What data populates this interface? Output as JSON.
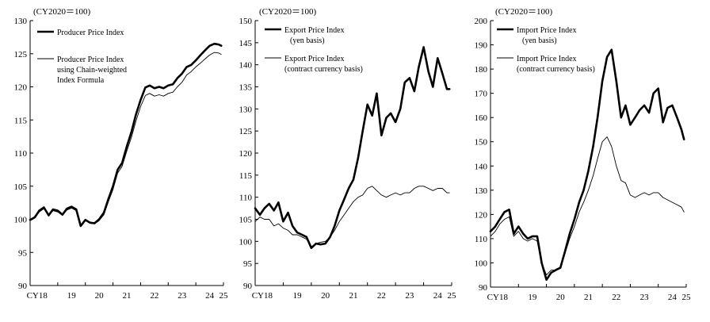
{
  "chart_data": [
    {
      "type": "line",
      "unit_label": "(CY2020＝100)",
      "ylim": [
        90,
        130
      ],
      "yticks": [
        90,
        95,
        100,
        105,
        110,
        115,
        120,
        125,
        130
      ],
      "xlim": [
        2018,
        2025
      ],
      "xtick_labels": [
        {
          "x": 2018.25,
          "label": "CY18"
        },
        {
          "x": 2019.5,
          "label": "19"
        },
        {
          "x": 2020.5,
          "label": "20"
        },
        {
          "x": 2021.5,
          "label": "21"
        },
        {
          "x": 2022.5,
          "label": "22"
        },
        {
          "x": 2023.5,
          "label": "23"
        },
        {
          "x": 2024.5,
          "label": "24"
        },
        {
          "x": 2025,
          "label": "25"
        }
      ],
      "grid": false,
      "legend_position": "top-left",
      "series": [
        {
          "name": "Producer Price Index",
          "legend_lines": [
            "Producer Price Index"
          ],
          "width": "thick",
          "x": [
            2018.0,
            2018.17,
            2018.33,
            2018.5,
            2018.67,
            2018.83,
            2019.0,
            2019.17,
            2019.33,
            2019.5,
            2019.67,
            2019.83,
            2020.0,
            2020.17,
            2020.33,
            2020.5,
            2020.67,
            2020.83,
            2021.0,
            2021.17,
            2021.33,
            2021.5,
            2021.67,
            2021.83,
            2022.0,
            2022.17,
            2022.33,
            2022.5,
            2022.67,
            2022.83,
            2023.0,
            2023.17,
            2023.33,
            2023.5,
            2023.67,
            2023.83,
            2024.0,
            2024.17,
            2024.33,
            2024.5,
            2024.67,
            2024.83,
            2024.92
          ],
          "values": [
            99.9,
            100.3,
            101.3,
            101.8,
            100.6,
            101.5,
            101.3,
            100.7,
            101.6,
            101.9,
            101.5,
            99.0,
            99.9,
            99.5,
            99.4,
            100.0,
            101.0,
            103.0,
            105.0,
            107.5,
            108.5,
            111.0,
            113.2,
            115.8,
            118.0,
            119.9,
            120.2,
            119.8,
            120.0,
            119.8,
            120.2,
            120.4,
            121.3,
            122.0,
            123.0,
            123.3,
            124.0,
            124.8,
            125.5,
            126.2,
            126.5,
            126.4,
            126.2
          ]
        },
        {
          "name": "Producer Price Index using Chain-weighted Index Formula",
          "legend_lines": [
            "Producer Price Index",
            "using Chain-weighted",
            "Index Formula"
          ],
          "width": "thin",
          "x": [
            2018.0,
            2018.17,
            2018.33,
            2018.5,
            2018.67,
            2018.83,
            2019.0,
            2019.17,
            2019.33,
            2019.5,
            2019.67,
            2019.83,
            2020.0,
            2020.17,
            2020.33,
            2020.5,
            2020.67,
            2020.83,
            2021.0,
            2021.17,
            2021.33,
            2021.5,
            2021.67,
            2021.83,
            2022.0,
            2022.17,
            2022.33,
            2022.5,
            2022.67,
            2022.83,
            2023.0,
            2023.17,
            2023.33,
            2023.5,
            2023.67,
            2023.83,
            2024.0,
            2024.17,
            2024.33,
            2024.5,
            2024.67,
            2024.83,
            2024.92
          ],
          "values": [
            99.8,
            100.2,
            101.1,
            101.6,
            100.5,
            101.3,
            101.1,
            100.6,
            101.4,
            101.7,
            101.3,
            98.9,
            99.8,
            99.4,
            99.3,
            99.8,
            100.7,
            102.6,
            104.5,
            107.0,
            108.0,
            110.3,
            112.4,
            114.8,
            117.0,
            118.7,
            119.0,
            118.6,
            118.8,
            118.6,
            119.0,
            119.2,
            120.0,
            120.7,
            121.8,
            122.3,
            123.0,
            123.6,
            124.2,
            124.8,
            125.2,
            125.1,
            124.9
          ]
        }
      ]
    },
    {
      "type": "line",
      "unit_label": "(CY2020＝100)",
      "ylim": [
        90,
        150
      ],
      "yticks": [
        90,
        95,
        100,
        105,
        110,
        115,
        120,
        125,
        130,
        135,
        140,
        145,
        150
      ],
      "xlim": [
        2018,
        2025
      ],
      "xtick_labels": [
        {
          "x": 2018.25,
          "label": "CY18"
        },
        {
          "x": 2019.5,
          "label": "19"
        },
        {
          "x": 2020.5,
          "label": "20"
        },
        {
          "x": 2021.5,
          "label": "21"
        },
        {
          "x": 2022.5,
          "label": "22"
        },
        {
          "x": 2023.5,
          "label": "23"
        },
        {
          "x": 2024.5,
          "label": "24"
        },
        {
          "x": 2025,
          "label": "25"
        }
      ],
      "grid": false,
      "legend_position": "top-left",
      "series": [
        {
          "name": "Export Price Index (yen basis)",
          "legend_lines": [
            "Export Price Index",
            "(yen basis)"
          ],
          "width": "thick",
          "x": [
            2018.0,
            2018.17,
            2018.33,
            2018.5,
            2018.67,
            2018.83,
            2019.0,
            2019.17,
            2019.33,
            2019.5,
            2019.67,
            2019.83,
            2020.0,
            2020.17,
            2020.33,
            2020.5,
            2020.67,
            2020.83,
            2021.0,
            2021.17,
            2021.33,
            2021.5,
            2021.67,
            2021.83,
            2022.0,
            2022.17,
            2022.33,
            2022.5,
            2022.67,
            2022.83,
            2023.0,
            2023.17,
            2023.33,
            2023.5,
            2023.67,
            2023.83,
            2024.0,
            2024.17,
            2024.33,
            2024.5,
            2024.67,
            2024.83,
            2024.92
          ],
          "values": [
            107.5,
            106.0,
            107.5,
            108.5,
            107.0,
            108.8,
            104.5,
            106.5,
            103.5,
            102.0,
            101.5,
            101.0,
            98.5,
            99.5,
            99.3,
            99.5,
            101.0,
            103.5,
            107.0,
            109.5,
            112.0,
            114.0,
            119.0,
            125.0,
            131.0,
            128.5,
            133.5,
            124.0,
            128.0,
            129.0,
            127.0,
            130.0,
            136.0,
            137.0,
            134.0,
            139.5,
            144.0,
            138.5,
            135.0,
            141.5,
            138.0,
            134.5,
            134.5
          ]
        },
        {
          "name": "Export Price Index (contract currency basis)",
          "legend_lines": [
            "Export Price Index",
            "(contract currency basis)"
          ],
          "width": "thin",
          "x": [
            2018.0,
            2018.17,
            2018.33,
            2018.5,
            2018.67,
            2018.83,
            2019.0,
            2019.17,
            2019.33,
            2019.5,
            2019.67,
            2019.83,
            2020.0,
            2020.17,
            2020.33,
            2020.5,
            2020.67,
            2020.83,
            2021.0,
            2021.17,
            2021.33,
            2021.5,
            2021.67,
            2021.83,
            2022.0,
            2022.17,
            2022.33,
            2022.5,
            2022.67,
            2022.83,
            2023.0,
            2023.17,
            2023.33,
            2023.5,
            2023.67,
            2023.83,
            2024.0,
            2024.17,
            2024.33,
            2024.5,
            2024.67,
            2024.83,
            2024.92
          ],
          "values": [
            104.5,
            105.5,
            105.0,
            105.0,
            103.5,
            104.0,
            103.0,
            102.5,
            101.5,
            101.5,
            101.0,
            100.5,
            98.8,
            99.5,
            99.8,
            100.0,
            101.0,
            102.5,
            104.5,
            106.0,
            107.5,
            109.0,
            110.0,
            110.5,
            112.0,
            112.5,
            111.5,
            110.5,
            110.0,
            110.5,
            111.0,
            110.5,
            111.0,
            111.0,
            112.0,
            112.5,
            112.5,
            112.0,
            111.5,
            112.0,
            112.0,
            111.0,
            111.0
          ]
        }
      ]
    },
    {
      "type": "line",
      "unit_label": "(CY2020＝100)",
      "ylim": [
        90,
        200
      ],
      "yticks": [
        90,
        100,
        110,
        120,
        130,
        140,
        150,
        160,
        170,
        180,
        190,
        200
      ],
      "xlim": [
        2018,
        2025
      ],
      "xtick_labels": [
        {
          "x": 2018.25,
          "label": "CY18"
        },
        {
          "x": 2019.5,
          "label": "19"
        },
        {
          "x": 2020.5,
          "label": "20"
        },
        {
          "x": 2021.5,
          "label": "21"
        },
        {
          "x": 2022.5,
          "label": "22"
        },
        {
          "x": 2023.5,
          "label": "23"
        },
        {
          "x": 2024.5,
          "label": "24"
        },
        {
          "x": 2025,
          "label": "25"
        }
      ],
      "grid": false,
      "legend_position": "top-left",
      "series": [
        {
          "name": "Import Price Index (yen basis)",
          "legend_lines": [
            "Import Price Index",
            "(yen basis)"
          ],
          "width": "thick",
          "x": [
            2018.0,
            2018.17,
            2018.33,
            2018.5,
            2018.67,
            2018.83,
            2019.0,
            2019.17,
            2019.33,
            2019.5,
            2019.67,
            2019.83,
            2020.0,
            2020.17,
            2020.33,
            2020.5,
            2020.67,
            2020.83,
            2021.0,
            2021.17,
            2021.33,
            2021.5,
            2021.67,
            2021.83,
            2022.0,
            2022.17,
            2022.33,
            2022.5,
            2022.67,
            2022.83,
            2023.0,
            2023.17,
            2023.33,
            2023.5,
            2023.67,
            2023.83,
            2024.0,
            2024.17,
            2024.33,
            2024.5,
            2024.67,
            2024.83,
            2024.92
          ],
          "values": [
            113,
            115,
            118,
            121,
            122,
            112,
            115,
            112,
            110,
            111,
            111,
            100,
            93,
            96,
            97,
            98,
            105,
            112,
            118,
            125,
            130,
            138,
            148,
            160,
            175,
            185,
            188,
            175,
            160,
            165,
            157,
            160,
            163,
            165,
            162,
            170,
            172,
            158,
            164,
            165,
            160,
            155,
            151
          ]
        },
        {
          "name": "Import Price Index (contract currency basis)",
          "legend_lines": [
            "Import Price Index",
            "(contract currency basis)"
          ],
          "width": "thin",
          "x": [
            2018.0,
            2018.17,
            2018.33,
            2018.5,
            2018.67,
            2018.83,
            2019.0,
            2019.17,
            2019.33,
            2019.5,
            2019.67,
            2019.83,
            2020.0,
            2020.17,
            2020.33,
            2020.5,
            2020.67,
            2020.83,
            2021.0,
            2021.17,
            2021.33,
            2021.5,
            2021.67,
            2021.83,
            2022.0,
            2022.17,
            2022.33,
            2022.5,
            2022.67,
            2022.83,
            2023.0,
            2023.17,
            2023.33,
            2023.5,
            2023.67,
            2023.83,
            2024.0,
            2024.17,
            2024.33,
            2024.5,
            2024.67,
            2024.83,
            2024.92
          ],
          "values": [
            111,
            113,
            116,
            118,
            119,
            111,
            113,
            110,
            109,
            110,
            109,
            100,
            95,
            97,
            97,
            98,
            104,
            110,
            115,
            121,
            125,
            130,
            136,
            143,
            150,
            152,
            148,
            140,
            134,
            133,
            128,
            127,
            128,
            129,
            128,
            129,
            129,
            127,
            126,
            125,
            124,
            123,
            121
          ]
        }
      ]
    }
  ]
}
